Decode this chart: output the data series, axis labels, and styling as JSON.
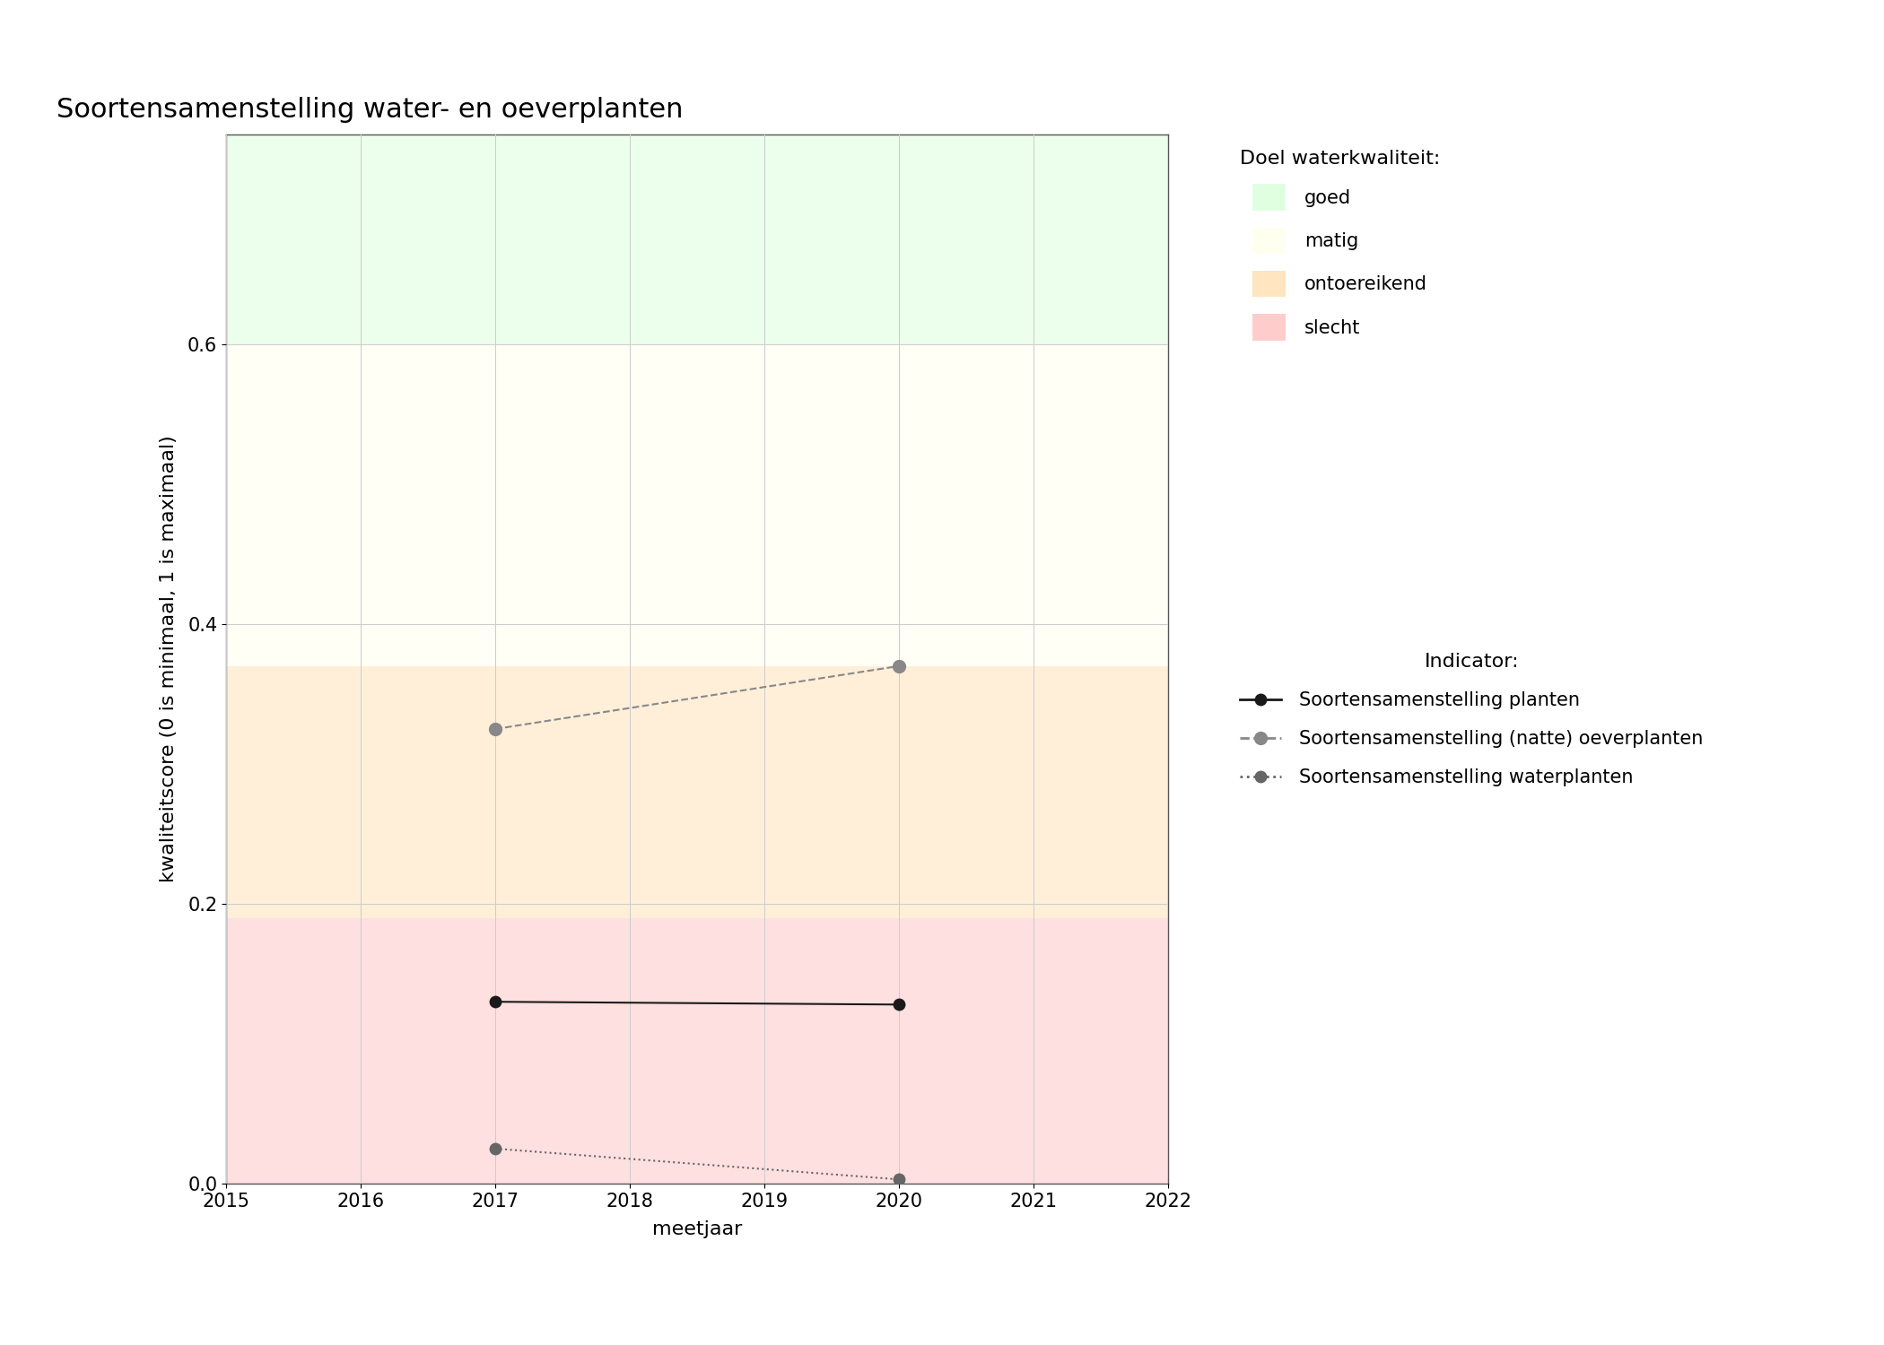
{
  "title": "Soortensamenstelling water- en oeverplanten",
  "xlabel": "meetjaar",
  "ylabel": "kwaliteitscore (0 is minimaal, 1 is maximaal)",
  "xlim": [
    2015,
    2022
  ],
  "ylim": [
    0.0,
    0.75
  ],
  "yticks": [
    0.0,
    0.2,
    0.4,
    0.6
  ],
  "xticks": [
    2015,
    2016,
    2017,
    2018,
    2019,
    2020,
    2021,
    2022
  ],
  "bg_zones": [
    {
      "ymin": 0.0,
      "ymax": 0.19,
      "color": "#FFCCCC",
      "alpha": 0.6,
      "label": "slecht"
    },
    {
      "ymin": 0.19,
      "ymax": 0.37,
      "color": "#FFE5C0",
      "alpha": 0.6,
      "label": "ontoereikend"
    },
    {
      "ymin": 0.37,
      "ymax": 0.6,
      "color": "#FFFFF0",
      "alpha": 0.6,
      "label": "matig"
    },
    {
      "ymin": 0.6,
      "ymax": 0.75,
      "color": "#E0FFE0",
      "alpha": 0.6,
      "label": "goed"
    }
  ],
  "series": [
    {
      "name": "Soortensamenstelling planten",
      "x": [
        2017,
        2020
      ],
      "y": [
        0.13,
        0.128
      ],
      "color": "#1a1a1a",
      "linestyle": "-",
      "linewidth": 1.5,
      "marker": "o",
      "markersize": 10,
      "markerfacecolor": "#1a1a1a",
      "zorder": 5
    },
    {
      "name": "Soortensamenstelling (natte) oeverplanten",
      "x": [
        2017,
        2020
      ],
      "y": [
        0.325,
        0.37
      ],
      "color": "#888888",
      "linestyle": "--",
      "linewidth": 1.5,
      "marker": "o",
      "markersize": 11,
      "markerfacecolor": "#888888",
      "zorder": 5
    },
    {
      "name": "Soortensamenstelling waterplanten",
      "x": [
        2017,
        2020
      ],
      "y": [
        0.025,
        0.003
      ],
      "color": "#666666",
      "linestyle": ":",
      "linewidth": 1.5,
      "marker": "o",
      "markersize": 10,
      "markerfacecolor": "#666666",
      "zorder": 5
    }
  ],
  "legend_title_quality": "Doel waterkwaliteit:",
  "legend_title_indicator": "Indicator:",
  "quality_legend": [
    {
      "label": "goed",
      "color": "#E0FFE0"
    },
    {
      "label": "matig",
      "color": "#FFFFF0"
    },
    {
      "label": "ontoereikend",
      "color": "#FFE5C0"
    },
    {
      "label": "slecht",
      "color": "#FFCCCC"
    }
  ],
  "figure_bg": "#FFFFFF",
  "grid_color": "#CCCCCC",
  "title_fontsize": 22,
  "axis_label_fontsize": 16,
  "tick_fontsize": 15,
  "legend_fontsize": 15,
  "legend_title_fontsize": 16
}
